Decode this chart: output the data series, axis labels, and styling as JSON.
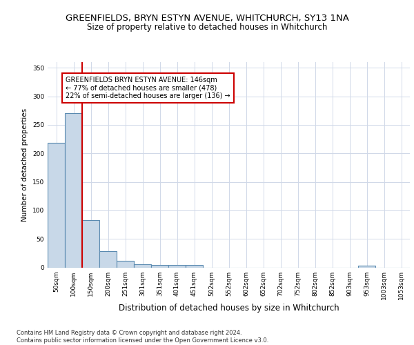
{
  "title": "GREENFIELDS, BRYN ESTYN AVENUE, WHITCHURCH, SY13 1NA",
  "subtitle": "Size of property relative to detached houses in Whitchurch",
  "xlabel": "Distribution of detached houses by size in Whitchurch",
  "ylabel": "Number of detached properties",
  "bar_labels": [
    "50sqm",
    "100sqm",
    "150sqm",
    "200sqm",
    "251sqm",
    "301sqm",
    "351sqm",
    "401sqm",
    "451sqm",
    "502sqm",
    "552sqm",
    "602sqm",
    "652sqm",
    "702sqm",
    "752sqm",
    "802sqm",
    "852sqm",
    "903sqm",
    "953sqm",
    "1003sqm",
    "1053sqm"
  ],
  "bar_values": [
    218,
    270,
    83,
    29,
    11,
    5,
    4,
    4,
    4,
    0,
    0,
    0,
    0,
    0,
    0,
    0,
    0,
    0,
    3,
    0,
    0
  ],
  "bar_color": "#c8d8e8",
  "bar_edgecolor": "#5a8ab0",
  "bar_linewidth": 0.8,
  "vline_x_index": 1.5,
  "vline_color": "#cc0000",
  "vline_linewidth": 1.5,
  "ylim": [
    0,
    360
  ],
  "yticks": [
    0,
    50,
    100,
    150,
    200,
    250,
    300,
    350
  ],
  "annotation_text": "GREENFIELDS BRYN ESTYN AVENUE: 146sqm\n← 77% of detached houses are smaller (478)\n22% of semi-detached houses are larger (136) →",
  "annotation_box_color": "#ffffff",
  "annotation_box_edgecolor": "#cc0000",
  "footer_text": "Contains HM Land Registry data © Crown copyright and database right 2024.\nContains public sector information licensed under the Open Government Licence v3.0.",
  "background_color": "#ffffff",
  "grid_color": "#d0d8e8",
  "title_fontsize": 9.5,
  "subtitle_fontsize": 8.5,
  "xlabel_fontsize": 8.5,
  "ylabel_fontsize": 7.5,
  "tick_fontsize": 6.5,
  "annotation_fontsize": 7,
  "footer_fontsize": 6
}
